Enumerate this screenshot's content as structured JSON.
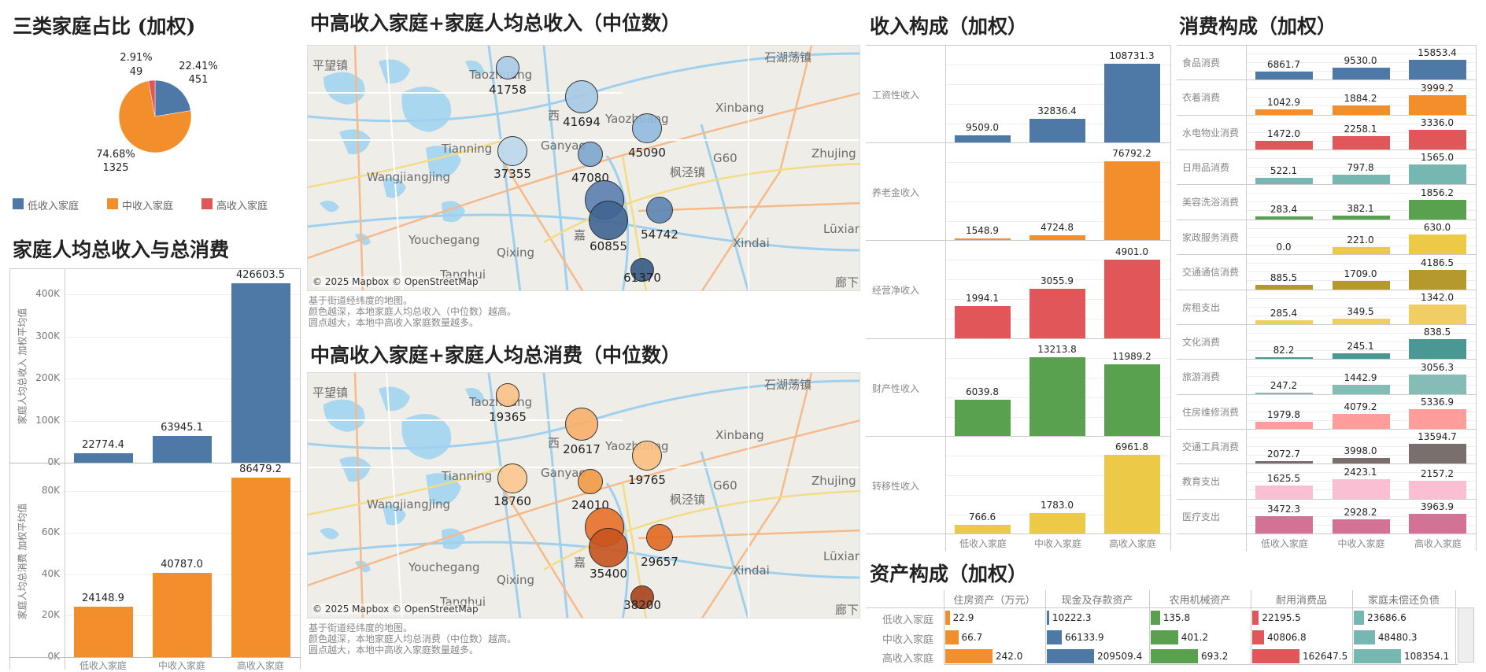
{
  "categories": [
    "低收入家庭",
    "中收入家庭",
    "高收入家庭"
  ],
  "chart_data": [
    {
      "type": "pie",
      "title": "三类家庭占比 (加权)",
      "legend_position": "bottom",
      "slices": [
        {
          "name": "低收入家庭",
          "percent": 22.41,
          "count": 451,
          "color": "#4e79a7"
        },
        {
          "name": "中收入家庭",
          "percent": 74.68,
          "count": 1325,
          "color": "#f28e2b"
        },
        {
          "name": "高收入家庭",
          "percent": 2.91,
          "count": 49,
          "color": "#e15759"
        }
      ]
    },
    {
      "type": "bar",
      "title": "家庭人均总收入与总消费",
      "categories": [
        "低收入家庭",
        "中收入家庭",
        "高收入家庭"
      ],
      "panels": [
        {
          "ylabel": "家庭人均总收入 加权平均值",
          "ticks": [
            "0K",
            "100K",
            "200K",
            "300K",
            "400K"
          ],
          "tick_values": [
            0,
            100000,
            200000,
            300000,
            400000
          ],
          "ylim": [
            0,
            460000
          ],
          "values": [
            22774.4,
            63945.1,
            426603.5
          ],
          "color": "#4e79a7"
        },
        {
          "ylabel": "家庭人均总消费 加权平均值",
          "ticks": [
            "0K",
            "20K",
            "40K",
            "60K",
            "80K"
          ],
          "tick_values": [
            0,
            20000,
            40000,
            60000,
            80000
          ],
          "ylim": [
            0,
            93000
          ],
          "values": [
            24148.9,
            40787.0,
            86479.2
          ],
          "color": "#f28e2b"
        }
      ],
      "grid": true
    },
    {
      "type": "bar",
      "title": "收入构成（加权）",
      "categories": [
        "低收入家庭",
        "中收入家庭",
        "高收入家庭"
      ],
      "rows": [
        {
          "label": "工资性收入",
          "values": [
            9509.0,
            32836.4,
            108731.3
          ],
          "color": "#4e79a7"
        },
        {
          "label": "养老金收入",
          "values": [
            1548.9,
            4724.8,
            76792.2
          ],
          "color": "#f28e2b"
        },
        {
          "label": "经营净收入",
          "values": [
            1994.1,
            3055.9,
            4901.0
          ],
          "color": "#e15759"
        },
        {
          "label": "财产性收入",
          "values": [
            6039.8,
            13213.8,
            11989.2
          ],
          "color": "#59a14f"
        },
        {
          "label": "转移性收入",
          "values": [
            766.6,
            1783.0,
            6961.8
          ],
          "color": "#edc948"
        }
      ]
    },
    {
      "type": "bar",
      "title": "消费构成（加权）",
      "categories": [
        "低收入家庭",
        "中收入家庭",
        "高收入家庭"
      ],
      "rows": [
        {
          "label": "食品消费",
          "values": [
            6861.7,
            9530.0,
            15853.4
          ],
          "color": "#4e79a7"
        },
        {
          "label": "衣着消费",
          "values": [
            1042.9,
            1884.2,
            3999.2
          ],
          "color": "#f28e2b"
        },
        {
          "label": "水电物业消费",
          "values": [
            1472.0,
            2258.1,
            3336.0
          ],
          "color": "#e15759"
        },
        {
          "label": "日用品消费",
          "values": [
            522.1,
            797.8,
            1565.0
          ],
          "color": "#76b7b2"
        },
        {
          "label": "美容洗浴消费",
          "values": [
            283.4,
            382.1,
            1856.2
          ],
          "color": "#59a14f"
        },
        {
          "label": "家政服务消费",
          "values": [
            0.0,
            221.0,
            630.0
          ],
          "color": "#edc948"
        },
        {
          "label": "交通通信消费",
          "values": [
            885.5,
            1709.0,
            4186.5
          ],
          "color": "#b6992d"
        },
        {
          "label": "房租支出",
          "values": [
            285.4,
            349.5,
            1342.0
          ],
          "color": "#f1ce63"
        },
        {
          "label": "文化消费",
          "values": [
            82.2,
            245.1,
            838.5
          ],
          "color": "#499894"
        },
        {
          "label": "旅游消费",
          "values": [
            247.2,
            1442.9,
            3056.3
          ],
          "color": "#86bcb6"
        },
        {
          "label": "住房维修消费",
          "values": [
            1979.8,
            4079.2,
            5336.9
          ],
          "color": "#ff9d9a"
        },
        {
          "label": "交通工具消费",
          "values": [
            2072.7,
            3998.0,
            13594.7
          ],
          "color": "#79706e"
        },
        {
          "label": "教育支出",
          "values": [
            1625.5,
            2423.1,
            2157.2
          ],
          "color": "#fabfd2"
        },
        {
          "label": "医疗支出",
          "values": [
            3472.3,
            2928.2,
            3963.9
          ],
          "color": "#d37295"
        }
      ]
    },
    {
      "type": "bar",
      "title": "资产构成（加权）",
      "orientation": "horizontal",
      "categories": [
        "低收入家庭",
        "中收入家庭",
        "高收入家庭"
      ],
      "columns": [
        {
          "header": "住房资产（万元）",
          "values": [
            22.9,
            66.7,
            242.0
          ],
          "color": "#f28e2b"
        },
        {
          "header": "现金及存款资产",
          "values": [
            10222.3,
            66133.9,
            209509.4
          ],
          "color": "#4e79a7"
        },
        {
          "header": "农用机械资产",
          "values": [
            135.8,
            401.2,
            693.2
          ],
          "color": "#59a14f"
        },
        {
          "header": "耐用消费品",
          "values": [
            22195.5,
            40806.8,
            162647.5
          ],
          "color": "#e15759"
        },
        {
          "header": "家庭未偿还负债",
          "values": [
            23686.6,
            48480.3,
            108354.1
          ],
          "color": "#76b7b2"
        }
      ]
    }
  ],
  "maps": [
    {
      "title": "中高收入家庭+家庭人均总收入（中位数）",
      "bubble_values": [
        "41758",
        "41694",
        "45090",
        "37355",
        "47080",
        "",
        "60855",
        "54742",
        "61370"
      ],
      "bubble_colors": [
        "#a9cbe7",
        "#a6c9e6",
        "#92bcdf",
        "#bcd8ed",
        "#7ea6cf",
        "#5a80b0",
        "#3f6592",
        "#5b85b5",
        "#345a86"
      ],
      "notes": [
        "基于街道经纬度的地图。",
        "颜色越深，本地家庭人均总收入（中位数）越高。",
        "圆点越大，本地中高收入家庭数量越多。"
      ]
    },
    {
      "title": "中高收入家庭+家庭人均总消费（中位数）",
      "bubble_values": [
        "19365",
        "20617",
        "19765",
        "18760",
        "24010",
        "",
        "35400",
        "29657",
        "38200"
      ],
      "bubble_colors": [
        "#fbc286",
        "#f8b06a",
        "#fbc080",
        "#fcc88e",
        "#f29a45",
        "#e8702a",
        "#c8541f",
        "#e06a22",
        "#a8421c"
      ],
      "notes": [
        "基于街道经纬度的地图。",
        "颜色越深，本地家庭人均总消费（中位数）越高。",
        "圆点越大，本地中高收入家庭数量越多。"
      ]
    }
  ],
  "map_places": [
    "平望镇",
    "Taozhuang",
    "石湖荡镇",
    "Xinbang",
    "Yaozhuang",
    "G60",
    "Zhujing",
    "枫泾镇",
    "Wangjiangjing",
    "Tianning",
    "Ganyao",
    "Youchegang",
    "Qixing",
    "Xindai",
    "Lüxiang",
    "Tanghui",
    "廊下",
    "西",
    "嘉"
  ],
  "map_attribution": "© 2025 Mapbox © OpenStreetMap"
}
